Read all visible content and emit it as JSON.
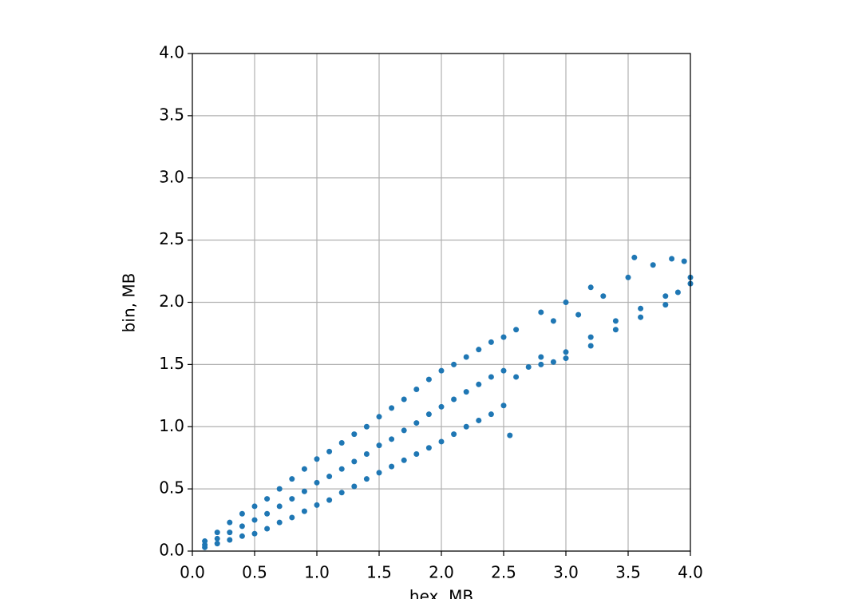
{
  "chart_data": {
    "type": "scatter",
    "x_label": "hex, MB",
    "y_label": "bin, MB",
    "series": [
      {
        "color": "#1f77b4",
        "x": [
          0.1,
          0.1,
          0.1,
          0.2,
          0.2,
          0.2,
          0.3,
          0.3,
          0.3,
          0.4,
          0.4,
          0.4,
          0.5,
          0.5,
          0.5,
          0.6,
          0.6,
          0.6,
          0.7,
          0.7,
          0.7,
          0.8,
          0.8,
          0.8,
          0.9,
          0.9,
          0.9,
          1.0,
          1.0,
          1.0,
          1.1,
          1.1,
          1.1,
          1.2,
          1.2,
          1.2,
          1.3,
          1.3,
          1.3,
          1.4,
          1.4,
          1.4,
          1.5,
          1.5,
          1.5,
          1.6,
          1.6,
          1.6,
          1.7,
          1.7,
          1.7,
          1.8,
          1.8,
          1.8,
          1.9,
          1.9,
          1.9,
          2.0,
          2.0,
          2.0,
          2.1,
          2.1,
          2.1,
          2.2,
          2.2,
          2.2,
          2.3,
          2.3,
          2.3,
          2.4,
          2.4,
          2.4,
          2.5,
          2.5,
          2.5,
          2.55,
          2.6,
          2.7,
          2.8,
          2.8,
          2.9,
          3.0,
          3.0,
          3.2,
          3.2,
          3.4,
          3.4,
          3.6,
          3.6,
          3.8,
          3.8,
          3.9,
          4.0,
          4.0,
          2.6,
          2.8,
          3.0,
          3.1,
          3.3,
          3.5,
          3.55,
          3.7,
          3.85,
          3.95,
          3.2,
          2.9
        ],
        "values": [
          0.03,
          0.05,
          0.08,
          0.06,
          0.1,
          0.15,
          0.09,
          0.15,
          0.23,
          0.12,
          0.2,
          0.3,
          0.14,
          0.25,
          0.36,
          0.18,
          0.3,
          0.42,
          0.23,
          0.36,
          0.5,
          0.27,
          0.42,
          0.58,
          0.32,
          0.48,
          0.66,
          0.37,
          0.55,
          0.74,
          0.41,
          0.6,
          0.8,
          0.47,
          0.66,
          0.87,
          0.52,
          0.72,
          0.94,
          0.58,
          0.78,
          1.0,
          0.63,
          0.85,
          1.08,
          0.68,
          0.9,
          1.15,
          0.73,
          0.97,
          1.22,
          0.78,
          1.03,
          1.3,
          0.83,
          1.1,
          1.38,
          0.88,
          1.16,
          1.45,
          0.94,
          1.22,
          1.5,
          1.0,
          1.28,
          1.56,
          1.05,
          1.34,
          1.62,
          1.1,
          1.4,
          1.68,
          1.17,
          1.45,
          1.72,
          0.93,
          1.4,
          1.48,
          1.5,
          1.56,
          1.52,
          1.55,
          1.6,
          1.65,
          1.72,
          1.78,
          1.85,
          1.88,
          1.95,
          1.98,
          2.05,
          2.08,
          2.15,
          2.2,
          1.78,
          1.92,
          2.0,
          1.9,
          2.05,
          2.2,
          2.36,
          2.3,
          2.35,
          2.33,
          2.12,
          1.85
        ]
      }
    ],
    "xlim": [
      0,
      4
    ],
    "ylim": [
      0,
      4
    ],
    "xticks": [
      {
        "value": 0,
        "label": "0.0"
      },
      0.5,
      {
        "value": 1,
        "label": "1.0"
      },
      1.5,
      {
        "value": 2,
        "label": "2.0"
      },
      2.5,
      {
        "value": 3,
        "label": "3.0"
      },
      3.5,
      {
        "value": 4,
        "label": "4.0"
      }
    ],
    "yticks": [
      {
        "value": 0,
        "label": "0.0"
      },
      0.5,
      {
        "value": 1,
        "label": "1.0"
      },
      1.5,
      {
        "value": 2,
        "label": "2.0"
      },
      2.5,
      {
        "value": 3,
        "label": "3.0"
      },
      3.5,
      {
        "value": 4,
        "label": "4.0"
      }
    ],
    "grid": true
  }
}
